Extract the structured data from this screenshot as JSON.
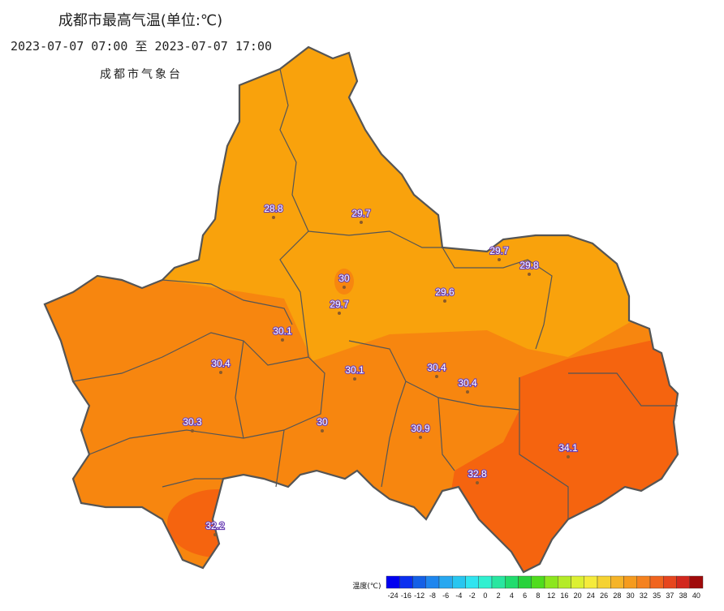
{
  "header": {
    "title": "成都市最高气温(单位:℃)",
    "time_range": "2023-07-07 07:00 至 2023-07-07 17:00",
    "issuer": "成都市气象台"
  },
  "stations": [
    "28.8",
    "29.7",
    "29.7",
    "29.8",
    "30",
    "29.6",
    "29.7",
    "30.1",
    "30.4",
    "30.1",
    "30.4",
    "30.4",
    "30.3",
    "30",
    "30.9",
    "34.1",
    "32.8",
    "32.2"
  ],
  "legend": {
    "label": "温度(℃)",
    "ticks": [
      "-24",
      "-16",
      "-12",
      "-8",
      "-6",
      "-4",
      "-2",
      "0",
      "2",
      "4",
      "6",
      "8",
      "12",
      "16",
      "20",
      "24",
      "26",
      "28",
      "30",
      "32",
      "35",
      "37",
      "38",
      "40"
    ],
    "colors": [
      "#0000f0",
      "#0a2ff0",
      "#1460e6",
      "#1e86ee",
      "#28a8f0",
      "#28c6f0",
      "#30e4f0",
      "#30f0d0",
      "#28e6a0",
      "#20dc6e",
      "#28d23c",
      "#50dc1e",
      "#8ce61e",
      "#b4eb28",
      "#dcf032",
      "#f5eb3c",
      "#f5d232",
      "#f5b428",
      "#f59b1e",
      "#f5821e",
      "#f0641e",
      "#e6461e",
      "#d2281e",
      "#a00a0a"
    ]
  }
}
